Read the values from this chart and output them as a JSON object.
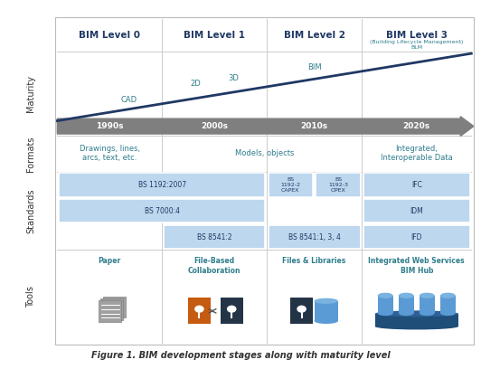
{
  "title": "Figure 1. BIM development stages along with maturity level",
  "bg_color": "#ffffff",
  "header_color": "#1f3864",
  "teal_color": "#2e7d8c",
  "light_blue": "#bdd7ee",
  "mid_blue": "#9dc3e6",
  "dark_blue": "#1f3864",
  "gray_color": "#7f7f7f",
  "bim_levels": [
    "BIM Level 0",
    "BIM Level 1",
    "BIM Level 2",
    "BIM Level 3"
  ],
  "timeline_labels": [
    "1990s",
    "2000s",
    "2010s",
    "2020s"
  ],
  "maturity_labels_text": [
    "CAD",
    "2D",
    "3D",
    "BIM",
    "(Building Lifecycle Management)\nBLM"
  ],
  "formats_labels": [
    "Drawings, lines,\narcs, text, etc.",
    "Models, objects",
    "Integrated,\nInteroperable Data"
  ],
  "tools_labels": [
    "Paper",
    "File-Based\nCollaboration",
    "Files & Libraries",
    "Integrated Web Services\nBIM Hub"
  ],
  "col_dividers": [
    0.115,
    0.335,
    0.555,
    0.755,
    0.985
  ],
  "row_tops": [
    0.955,
    0.865,
    0.635,
    0.535,
    0.32,
    0.065
  ],
  "orange_color": "#c55a11",
  "dark_icon_color": "#243447",
  "cyl_light": "#5b9bd5",
  "cyl_top": "#7ab3e0",
  "cyl_dark": "#1f4e79",
  "hub_base": "#1f3864"
}
